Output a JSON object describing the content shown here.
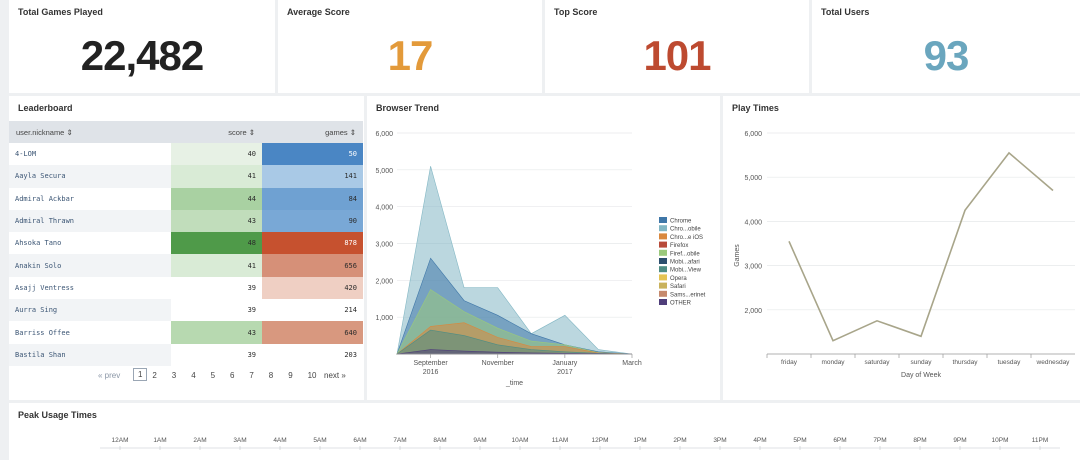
{
  "kpis": [
    {
      "label": "Total Games Played",
      "value": "22,482",
      "color": "#222222"
    },
    {
      "label": "Average Score",
      "value": "17",
      "color": "#e39a3a"
    },
    {
      "label": "Top Score",
      "value": "101",
      "color": "#bd4a30"
    },
    {
      "label": "Total Users",
      "value": "93",
      "color": "#6aa6be"
    }
  ],
  "leaderboard": {
    "title": "Leaderboard",
    "columns": [
      "user.nickname ⇕",
      "score ⇕",
      "games ⇕"
    ],
    "rows": [
      {
        "nickname": "4-LOM",
        "score": "40",
        "games": "50",
        "score_color": "#e7f1e5",
        "games_color": "#4a86c4"
      },
      {
        "nickname": "Aayla Secura",
        "score": "41",
        "games": "141",
        "score_color": "#d9ebd6",
        "games_color": "#a9c9e6"
      },
      {
        "nickname": "Admiral Ackbar",
        "score": "44",
        "games": "84",
        "score_color": "#a9d1a2",
        "games_color": "#6fa1d2"
      },
      {
        "nickname": "Admiral Thrawn",
        "score": "43",
        "games": "90",
        "score_color": "#c1ddbb",
        "games_color": "#79a8d6"
      },
      {
        "nickname": "Ahsoka Tano",
        "score": "48",
        "games": "878",
        "score_color": "#4f9a49",
        "games_color": "#c6512f"
      },
      {
        "nickname": "Anakin Solo",
        "score": "41",
        "games": "656",
        "score_color": "#d9ebd6",
        "games_color": "#d69078"
      },
      {
        "nickname": "Asajj Ventress",
        "score": "39",
        "games": "420",
        "score_color": "#ffffff",
        "games_color": "#efcfc3"
      },
      {
        "nickname": "Aurra Sing",
        "score": "39",
        "games": "214",
        "score_color": "#ffffff",
        "games_color": "#ffffff"
      },
      {
        "nickname": "Barriss Offee",
        "score": "43",
        "games": "640",
        "score_color": "#b7d9b0",
        "games_color": "#d8987f"
      },
      {
        "nickname": "Bastila Shan",
        "score": "39",
        "games": "203",
        "score_color": "#ffffff",
        "games_color": "#ffffff"
      }
    ],
    "pager": {
      "prev": "« prev",
      "pages": [
        "1",
        "2",
        "3",
        "4",
        "5",
        "6",
        "7",
        "8",
        "9",
        "10"
      ],
      "current": "1",
      "next": "next »"
    }
  },
  "browser_trend": {
    "title": "Browser Trend",
    "y_ticks": [
      "6,000",
      "5,000",
      "4,000",
      "3,000",
      "2,000",
      "1,000"
    ],
    "x_ticks": [
      {
        "line1": "September",
        "line2": "2016"
      },
      {
        "line1": "November",
        "line2": ""
      },
      {
        "line1": "January",
        "line2": "2017"
      },
      {
        "line1": "March",
        "line2": ""
      }
    ],
    "x_axis_label": "_time",
    "legend": [
      {
        "name": "Chrome",
        "color": "#3f77a8"
      },
      {
        "name": "Chro...obile",
        "color": "#83b7c4"
      },
      {
        "name": "Chro...e iOS",
        "color": "#d9883e"
      },
      {
        "name": "Firefox",
        "color": "#b84b3a"
      },
      {
        "name": "Firef...obile",
        "color": "#9bc97c"
      },
      {
        "name": "Mobi...afari",
        "color": "#2c4f6e"
      },
      {
        "name": "Mobi...View",
        "color": "#4e8d84"
      },
      {
        "name": "Opera",
        "color": "#e5c454"
      },
      {
        "name": "Safari",
        "color": "#c9b25c"
      },
      {
        "name": "Sams...erinet",
        "color": "#c68a6d"
      },
      {
        "name": "OTHER",
        "color": "#4f3e7a"
      }
    ]
  },
  "play_times": {
    "title": "Play Times",
    "y_ticks": [
      "6,000",
      "5,000",
      "4,000",
      "3,000",
      "2,000"
    ],
    "y_axis_label": "Games",
    "x_axis_label": "Day of Week",
    "line_color": "#a8a58a"
  },
  "peak_usage": {
    "title": "Peak Usage Times",
    "hours": [
      "12AM",
      "1AM",
      "2AM",
      "3AM",
      "4AM",
      "5AM",
      "6AM",
      "7AM",
      "8AM",
      "9AM",
      "10AM",
      "11AM",
      "12PM",
      "1PM",
      "2PM",
      "3PM",
      "4PM",
      "5PM",
      "6PM",
      "7PM",
      "8PM",
      "9PM",
      "10PM",
      "11PM"
    ]
  },
  "chart_data": [
    {
      "type": "area",
      "title": "Browser Trend",
      "xlabel": "_time",
      "ylabel": "",
      "x": [
        "2016-08",
        "2016-09",
        "2016-10",
        "2016-11",
        "2016-12",
        "2017-01",
        "2017-02",
        "2017-03"
      ],
      "ylim": [
        0,
        6000
      ],
      "series": [
        {
          "name": "Chro...obile",
          "values": [
            0,
            5100,
            1800,
            1800,
            550,
            1050,
            120,
            0
          ]
        },
        {
          "name": "Chrome",
          "values": [
            0,
            2600,
            1450,
            1050,
            550,
            250,
            60,
            0
          ]
        },
        {
          "name": "Firef...obile",
          "values": [
            0,
            1750,
            1150,
            700,
            350,
            250,
            40,
            0
          ]
        },
        {
          "name": "Chro...e iOS",
          "values": [
            0,
            750,
            850,
            450,
            200,
            200,
            30,
            0
          ]
        },
        {
          "name": "Mobi...View",
          "values": [
            0,
            650,
            500,
            250,
            120,
            60,
            20,
            0
          ]
        },
        {
          "name": "OTHER",
          "values": [
            0,
            120,
            80,
            50,
            30,
            20,
            10,
            0
          ]
        }
      ]
    },
    {
      "type": "line",
      "title": "Play Times",
      "xlabel": "Day of Week",
      "ylabel": "Games",
      "categories": [
        "friday",
        "monday",
        "saturday",
        "sunday",
        "thursday",
        "tuesday",
        "wednesday"
      ],
      "series": [
        {
          "values": [
            3550,
            1300,
            1750,
            1400,
            4250,
            5550,
            4700
          ]
        }
      ],
      "ylim": [
        1000,
        6000
      ]
    }
  ]
}
